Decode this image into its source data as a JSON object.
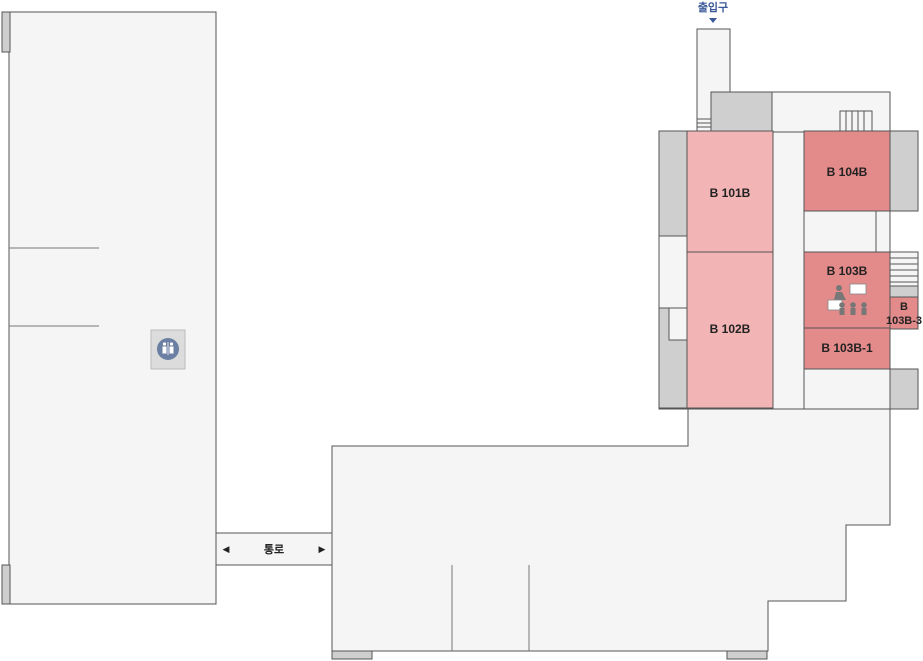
{
  "entrance": {
    "label": "출입구"
  },
  "corridor": {
    "label": "통로",
    "left_arrow": "◀",
    "right_arrow": "▶"
  },
  "rooms": {
    "b101b": {
      "label": "B 101B"
    },
    "b102b": {
      "label": "B 102B"
    },
    "b104b": {
      "label": "B 104B"
    },
    "b103b": {
      "label": "B 103B"
    },
    "b103b1": {
      "label": "B 103B-1"
    },
    "b103b3": {
      "line1": "B",
      "line2": "103B-3"
    }
  },
  "icons": {
    "restroom": "restroom-icon",
    "lecture": "lecture-room-icon",
    "entrance": "entrance-arrow-icon"
  },
  "colors": {
    "building_fill": "#f5f5f5",
    "wall_stroke": "#555555",
    "gray_block": "#cfcfcf",
    "room_light": "#f2b4b4",
    "room_dark": "#e38a8a",
    "entrance_text": "#3b5998",
    "restroom_icon": "#6b7fa3"
  }
}
